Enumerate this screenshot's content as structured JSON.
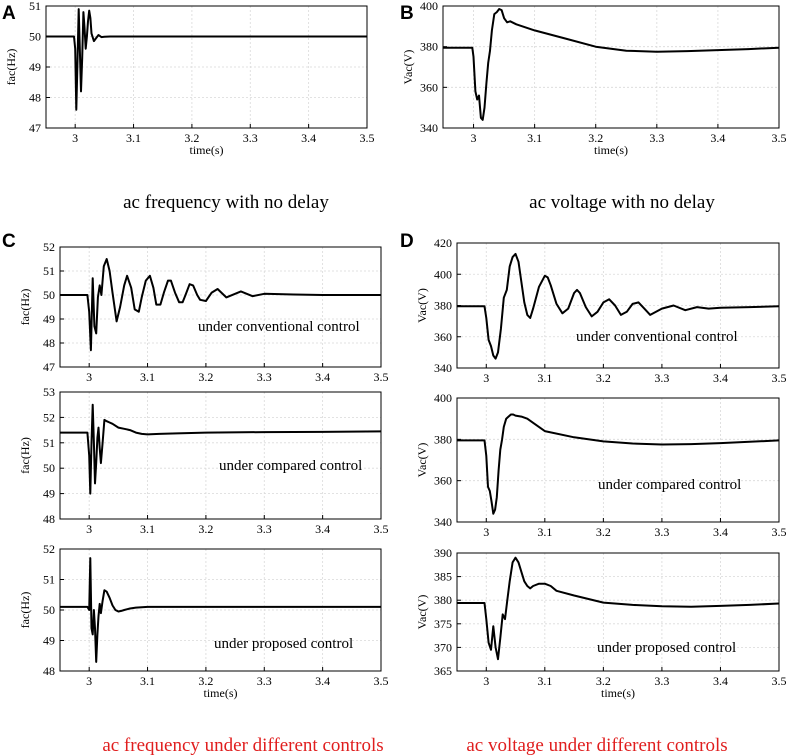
{
  "captions": {
    "A": "ac frequency with no delay",
    "B": "ac voltage with no delay",
    "C": "ac frequency under different controls",
    "D": "ac voltage under different controls"
  },
  "colors": {
    "caption_red": "#e01e1e",
    "trace": "#000000",
    "grid": "#d9d9d9"
  },
  "chart_data": [
    {
      "id": "A1",
      "panel_letter": "A",
      "type": "line",
      "title": "",
      "xlabel": "time(s)",
      "ylabel": "fac(Hz)",
      "annotation": "",
      "xlim": [
        2.95,
        3.5
      ],
      "ylim": [
        47,
        51
      ],
      "xticks": [
        3,
        3.1,
        3.2,
        3.3,
        3.4,
        3.5
      ],
      "xtick_labels": [
        "3",
        "3.1",
        "3.2",
        "3.3",
        "3.4",
        "3.5"
      ],
      "yticks": [
        47,
        48,
        49,
        50,
        51
      ],
      "series": [
        {
          "name": "fac",
          "x": [
            2.95,
            2.998,
            3.0,
            3.002,
            3.004,
            3.006,
            3.008,
            3.01,
            3.012,
            3.014,
            3.016,
            3.018,
            3.02,
            3.022,
            3.024,
            3.026,
            3.028,
            3.032,
            3.036,
            3.04,
            3.045,
            3.05,
            3.06,
            3.08,
            3.1,
            3.2,
            3.3,
            3.4,
            3.5
          ],
          "y": [
            50,
            50,
            49.6,
            47.6,
            49.2,
            50.9,
            49.5,
            48.2,
            49.3,
            50.8,
            50.3,
            49.6,
            50.0,
            50.5,
            50.85,
            50.6,
            50.1,
            49.85,
            49.95,
            50.05,
            49.98,
            49.99,
            50.0,
            50.0,
            50.0,
            50.0,
            50.0,
            50.0,
            50.0
          ]
        }
      ]
    },
    {
      "id": "B1",
      "panel_letter": "B",
      "type": "line",
      "title": "",
      "xlabel": "time(s)",
      "ylabel": "Vac(V)",
      "annotation": "",
      "xlim": [
        2.95,
        3.5
      ],
      "ylim": [
        340,
        400
      ],
      "xticks": [
        3,
        3.1,
        3.2,
        3.3,
        3.4,
        3.5
      ],
      "xtick_labels": [
        "3",
        "3.1",
        "3.2",
        "3.3",
        "3.4",
        "3.5"
      ],
      "yticks": [
        340,
        360,
        380,
        400
      ],
      "series": [
        {
          "name": "Vac",
          "x": [
            2.95,
            2.998,
            3.0,
            3.003,
            3.006,
            3.009,
            3.012,
            3.015,
            3.018,
            3.021,
            3.024,
            3.027,
            3.03,
            3.034,
            3.038,
            3.042,
            3.046,
            3.05,
            3.055,
            3.06,
            3.07,
            3.1,
            3.15,
            3.2,
            3.25,
            3.3,
            3.35,
            3.4,
            3.45,
            3.5
          ],
          "y": [
            379.5,
            379.5,
            375,
            358,
            354,
            356,
            345,
            344,
            350,
            362,
            372,
            378,
            388,
            396,
            397,
            398.5,
            398,
            394,
            392,
            392.5,
            391,
            388,
            384,
            380,
            378,
            377.5,
            377.8,
            378.3,
            378.8,
            379.5
          ]
        }
      ]
    },
    {
      "id": "C1",
      "panel_letter": "C",
      "type": "line",
      "title": "",
      "xlabel": "",
      "ylabel": "fac(Hz)",
      "annotation": "under conventional control",
      "xlim": [
        2.95,
        3.5
      ],
      "ylim": [
        47,
        52
      ],
      "xticks": [
        3,
        3.1,
        3.2,
        3.3,
        3.4,
        3.5
      ],
      "xtick_labels": [
        "3",
        "3.1",
        "3.2",
        "3.3",
        "3.4",
        "3.5"
      ],
      "yticks": [
        47,
        48,
        49,
        50,
        51,
        52
      ],
      "series": [
        {
          "name": "fac",
          "x": [
            2.95,
            2.997,
            3.0,
            3.003,
            3.006,
            3.009,
            3.012,
            3.015,
            3.018,
            3.021,
            3.025,
            3.03,
            3.035,
            3.04,
            3.047,
            3.053,
            3.06,
            3.065,
            3.072,
            3.078,
            3.085,
            3.09,
            3.097,
            3.104,
            3.11,
            3.115,
            3.122,
            3.128,
            3.135,
            3.14,
            3.147,
            3.154,
            3.16,
            3.165,
            3.172,
            3.178,
            3.185,
            3.19,
            3.2,
            3.21,
            3.22,
            3.235,
            3.25,
            3.26,
            3.28,
            3.3,
            3.35,
            3.4,
            3.45,
            3.5
          ],
          "y": [
            50,
            50,
            49.3,
            47.7,
            50.7,
            48.7,
            48.4,
            49.9,
            50.4,
            50.0,
            51.2,
            51.5,
            51.0,
            50.1,
            48.9,
            49.5,
            50.4,
            50.8,
            50.3,
            49.4,
            49.3,
            49.9,
            50.6,
            50.8,
            50.3,
            49.6,
            49.6,
            50.1,
            50.6,
            50.6,
            50.1,
            49.7,
            49.7,
            50.0,
            50.45,
            50.4,
            50.0,
            49.8,
            49.75,
            50.1,
            50.25,
            49.9,
            50.05,
            50.15,
            49.95,
            50.05,
            50.02,
            50.0,
            50.0,
            50.0
          ]
        }
      ]
    },
    {
      "id": "C2",
      "panel_letter": "",
      "type": "line",
      "title": "",
      "xlabel": "",
      "ylabel": "fac(Hz)",
      "annotation": "under compared control",
      "xlim": [
        2.95,
        3.5
      ],
      "ylim": [
        48,
        53
      ],
      "xticks": [
        3,
        3.1,
        3.2,
        3.3,
        3.4,
        3.5
      ],
      "xtick_labels": [
        "3",
        "3.1",
        "3.2",
        "3.3",
        "3.4",
        "3.5"
      ],
      "yticks": [
        48,
        49,
        50,
        51,
        52,
        53
      ],
      "series": [
        {
          "name": "fac",
          "x": [
            2.95,
            2.997,
            3.0,
            3.002,
            3.004,
            3.006,
            3.008,
            3.01,
            3.012,
            3.014,
            3.016,
            3.018,
            3.02,
            3.023,
            3.026,
            3.03,
            3.035,
            3.04,
            3.05,
            3.06,
            3.07,
            3.08,
            3.09,
            3.1,
            3.12,
            3.15,
            3.2,
            3.3,
            3.4,
            3.5
          ],
          "y": [
            51.4,
            51.4,
            50.5,
            49.0,
            51.0,
            52.5,
            51.0,
            49.4,
            50.2,
            51.2,
            51.6,
            50.8,
            50.2,
            51.0,
            51.9,
            51.85,
            51.8,
            51.75,
            51.6,
            51.55,
            51.5,
            51.4,
            51.35,
            51.33,
            51.35,
            51.37,
            51.4,
            51.42,
            51.43,
            51.45
          ]
        }
      ]
    },
    {
      "id": "C3",
      "panel_letter": "",
      "type": "line",
      "title": "",
      "xlabel": "time(s)",
      "ylabel": "fac(Hz)",
      "annotation": "under proposed control",
      "xlim": [
        2.95,
        3.5
      ],
      "ylim": [
        48,
        52
      ],
      "xticks": [
        3,
        3.1,
        3.2,
        3.3,
        3.4,
        3.5
      ],
      "xtick_labels": [
        "3",
        "3.1",
        "3.2",
        "3.3",
        "3.4",
        "3.5"
      ],
      "yticks": [
        48,
        49,
        50,
        51,
        52
      ],
      "series": [
        {
          "name": "fac",
          "x": [
            2.95,
            2.997,
            3.0,
            3.002,
            3.004,
            3.006,
            3.008,
            3.01,
            3.012,
            3.014,
            3.016,
            3.018,
            3.02,
            3.023,
            3.026,
            3.03,
            3.035,
            3.04,
            3.045,
            3.05,
            3.055,
            3.06,
            3.07,
            3.08,
            3.1,
            3.2,
            3.3,
            3.4,
            3.5
          ],
          "y": [
            50.1,
            50.1,
            50.0,
            51.7,
            49.4,
            49.2,
            50.0,
            49.4,
            48.3,
            49.2,
            49.8,
            50.2,
            49.9,
            50.3,
            50.65,
            50.6,
            50.4,
            50.15,
            50.0,
            49.95,
            49.97,
            50.0,
            50.05,
            50.08,
            50.1,
            50.1,
            50.1,
            50.1,
            50.1
          ]
        }
      ]
    },
    {
      "id": "D1",
      "panel_letter": "D",
      "type": "line",
      "title": "",
      "xlabel": "",
      "ylabel": "Vac(V)",
      "annotation": "under conventional control",
      "xlim": [
        2.95,
        3.5
      ],
      "ylim": [
        340,
        420
      ],
      "xticks": [
        3,
        3.1,
        3.2,
        3.3,
        3.4,
        3.5
      ],
      "xtick_labels": [
        "3",
        "3.1",
        "3.2",
        "3.3",
        "3.4",
        "3.5"
      ],
      "yticks": [
        340,
        360,
        380,
        400,
        420
      ],
      "series": [
        {
          "name": "Vac",
          "x": [
            2.95,
            2.997,
            3.0,
            3.004,
            3.008,
            3.012,
            3.016,
            3.02,
            3.025,
            3.03,
            3.035,
            3.04,
            3.045,
            3.05,
            3.055,
            3.06,
            3.065,
            3.07,
            3.075,
            3.08,
            3.09,
            3.1,
            3.105,
            3.11,
            3.12,
            3.13,
            3.14,
            3.15,
            3.155,
            3.16,
            3.17,
            3.18,
            3.19,
            3.2,
            3.21,
            3.22,
            3.23,
            3.24,
            3.25,
            3.26,
            3.27,
            3.28,
            3.3,
            3.32,
            3.34,
            3.36,
            3.38,
            3.4,
            3.45,
            3.5
          ],
          "y": [
            379.5,
            379.5,
            372,
            358,
            354,
            348,
            346,
            350,
            365,
            385,
            390,
            405,
            411,
            413,
            408,
            395,
            382,
            374,
            372,
            378,
            392,
            399,
            398,
            393,
            381,
            375,
            378,
            388,
            390,
            388,
            379,
            373,
            376,
            382,
            384,
            380,
            374,
            376,
            381,
            382,
            378,
            374,
            378,
            380,
            377,
            379,
            378,
            378.5,
            379,
            379.5
          ]
        }
      ]
    },
    {
      "id": "D2",
      "panel_letter": "",
      "type": "line",
      "title": "",
      "xlabel": "",
      "ylabel": "Vac(V)",
      "annotation": "under compared control",
      "xlim": [
        2.95,
        3.5
      ],
      "ylim": [
        340,
        400
      ],
      "xticks": [
        3,
        3.1,
        3.2,
        3.3,
        3.4,
        3.5
      ],
      "xtick_labels": [
        "3",
        "3.1",
        "3.2",
        "3.3",
        "3.4",
        "3.5"
      ],
      "yticks": [
        340,
        360,
        380,
        400
      ],
      "series": [
        {
          "name": "Vac",
          "x": [
            2.95,
            2.997,
            3.0,
            3.003,
            3.006,
            3.009,
            3.012,
            3.015,
            3.018,
            3.021,
            3.024,
            3.027,
            3.03,
            3.034,
            3.038,
            3.042,
            3.046,
            3.05,
            3.06,
            3.07,
            3.08,
            3.1,
            3.15,
            3.2,
            3.25,
            3.3,
            3.35,
            3.4,
            3.45,
            3.5
          ],
          "y": [
            379.5,
            379.5,
            372,
            357,
            355,
            350,
            344,
            346,
            352,
            365,
            375,
            380,
            386,
            390,
            391,
            392,
            392,
            391.5,
            391,
            390,
            388,
            384,
            381,
            379,
            378,
            377.5,
            377.7,
            378.2,
            378.8,
            379.5
          ]
        }
      ]
    },
    {
      "id": "D3",
      "panel_letter": "",
      "type": "line",
      "title": "",
      "xlabel": "time(s)",
      "ylabel": "Vac(V)",
      "annotation": "under proposed control",
      "xlim": [
        2.95,
        3.5
      ],
      "ylim": [
        365,
        390
      ],
      "xticks": [
        3,
        3.1,
        3.2,
        3.3,
        3.4,
        3.5
      ],
      "xtick_labels": [
        "3",
        "3.1",
        "3.2",
        "3.3",
        "3.4",
        "3.5"
      ],
      "yticks": [
        365,
        370,
        375,
        380,
        385,
        390
      ],
      "series": [
        {
          "name": "Vac",
          "x": [
            2.95,
            2.997,
            3.0,
            3.004,
            3.008,
            3.012,
            3.016,
            3.02,
            3.024,
            3.028,
            3.032,
            3.036,
            3.04,
            3.045,
            3.05,
            3.055,
            3.06,
            3.065,
            3.07,
            3.075,
            3.08,
            3.09,
            3.1,
            3.11,
            3.12,
            3.15,
            3.2,
            3.25,
            3.3,
            3.35,
            3.4,
            3.45,
            3.5
          ],
          "y": [
            379.4,
            379.4,
            376,
            371,
            369.5,
            374.5,
            370,
            367.5,
            372,
            377,
            376,
            380,
            384,
            388,
            389,
            388,
            386,
            384,
            383,
            382.5,
            383,
            383.5,
            383.5,
            383,
            382,
            381,
            379.5,
            379,
            378.7,
            378.6,
            378.8,
            379,
            379.3
          ]
        }
      ]
    }
  ]
}
